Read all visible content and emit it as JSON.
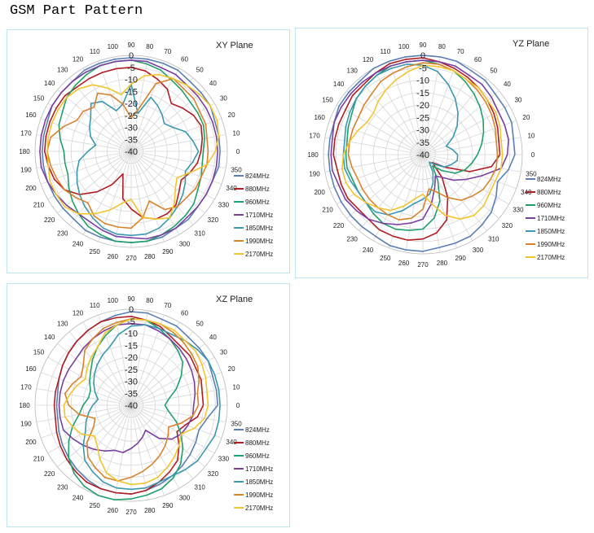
{
  "page": {
    "title": "GSM Part Pattern"
  },
  "colors": {
    "824MHz": "#5a7fb5",
    "880MHz": "#b01e24",
    "960MHz": "#1fa06a",
    "1710MHz": "#7a3fa0",
    "1850MHz": "#3a98b0",
    "1990MHz": "#d9822b",
    "2170MHz": "#f2c42c"
  },
  "chart_data": [
    {
      "type": "polar-line",
      "title": "XY Plane",
      "r_ticks": [
        "0",
        "-5",
        "-10",
        "-15",
        "-20",
        "-25",
        "-30",
        "-35",
        "-40"
      ],
      "r_range": [
        -40,
        0
      ],
      "angle_labels": [
        "0",
        "10",
        "20",
        "30",
        "40",
        "50",
        "60",
        "70",
        "80",
        "90",
        "100",
        "110",
        "120",
        "130",
        "140",
        "150",
        "160",
        "170",
        "180",
        "190",
        "200",
        "210",
        "220",
        "230",
        "240",
        "250",
        "260",
        "270",
        "280",
        "290",
        "300",
        "310",
        "320",
        "330",
        "340",
        "350"
      ],
      "legend": [
        "824MHz",
        "880MHz",
        "960MHz",
        "1710MHz",
        "1850MHz",
        "1990MHz",
        "2170MHz"
      ],
      "series": [
        {
          "name": "824MHz",
          "values": [
            -3,
            -3,
            -3,
            -2,
            -2,
            -2,
            -1,
            -1,
            -1,
            -1,
            -1,
            -1,
            -1,
            -2,
            -2,
            -2,
            -3,
            -3,
            -3,
            -3,
            -3,
            -3,
            -3,
            -3,
            -2,
            -2,
            -2,
            -2,
            -2,
            -2,
            -3,
            -3,
            -4,
            -4,
            -4,
            -3
          ]
        },
        {
          "name": "880MHz",
          "values": [
            -11,
            -10,
            -9,
            -10,
            -12,
            -14,
            -10,
            -8,
            -6,
            -5,
            -5,
            -5,
            -5,
            -5,
            -4,
            -4,
            -4,
            -4,
            -4,
            -5,
            -6,
            -8,
            -12,
            -18,
            -24,
            -30,
            -20,
            -16,
            -12,
            -10,
            -10,
            -11,
            -14,
            -16,
            -14,
            -12
          ]
        },
        {
          "name": "960MHz",
          "values": [
            -10,
            -9,
            -8,
            -8,
            -8,
            -7,
            -6,
            -4,
            -3,
            -2,
            -2,
            -2,
            -3,
            -4,
            -5,
            -7,
            -8,
            -10,
            -12,
            -12,
            -12,
            -10,
            -8,
            -6,
            -4,
            -3,
            -2,
            -2,
            -2,
            -3,
            -4,
            -5,
            -6,
            -8,
            -9,
            -10
          ]
        },
        {
          "name": "1710MHz",
          "values": [
            -4,
            -4,
            -4,
            -4,
            -4,
            -4,
            -3,
            -3,
            -2,
            -2,
            -2,
            -2,
            -2,
            -2,
            -2,
            -2,
            -2,
            -2,
            -2,
            -2,
            -3,
            -4,
            -5,
            -6,
            -6,
            -5,
            -4,
            -4,
            -3,
            -3,
            -3,
            -4,
            -4,
            -4,
            -4,
            -4
          ]
        },
        {
          "name": "1850MHz",
          "values": [
            -12,
            -14,
            -16,
            -20,
            -22,
            -20,
            -18,
            -16,
            -24,
            -12,
            -20,
            -22,
            -16,
            -14,
            -18,
            -20,
            -22,
            -25,
            -22,
            -18,
            -16,
            -14,
            -12,
            -10,
            -8,
            -6,
            -5,
            -5,
            -5,
            -6,
            -8,
            -10,
            -12,
            -14,
            -16,
            -14
          ]
        },
        {
          "name": "1990MHz",
          "values": [
            -8,
            -8,
            -7,
            -7,
            -6,
            -6,
            -5,
            -10,
            -22,
            -26,
            -20,
            -15,
            -12,
            -16,
            -14,
            -14,
            -10,
            -6,
            -5,
            -6,
            -7,
            -8,
            -10,
            -12,
            -9,
            -8,
            -8,
            -8,
            -12,
            -18,
            -12,
            -10,
            -10,
            -9,
            -9,
            -8
          ]
        },
        {
          "name": "2170MHz",
          "values": [
            -5,
            -3,
            -2,
            -2,
            -3,
            -4,
            -5,
            -6,
            -8,
            -12,
            -16,
            -12,
            -8,
            -6,
            -5,
            -5,
            -5,
            -5,
            -5,
            -5,
            -4,
            -4,
            -4,
            -6,
            -10,
            -14,
            -18,
            -20,
            -12,
            -10,
            -8,
            -12,
            -16,
            -18,
            -14,
            -8
          ]
        }
      ]
    },
    {
      "type": "polar-line",
      "title": "YZ Plane",
      "r_ticks": [
        "0",
        "-5",
        "-10",
        "-15",
        "-20",
        "-25",
        "-30",
        "-35",
        "-40"
      ],
      "r_range": [
        -40,
        0
      ],
      "angle_labels": [
        "0",
        "10",
        "20",
        "30",
        "40",
        "50",
        "60",
        "70",
        "80",
        "90",
        "100",
        "110",
        "120",
        "130",
        "140",
        "150",
        "160",
        "170",
        "180",
        "190",
        "200",
        "210",
        "220",
        "230",
        "240",
        "250",
        "260",
        "270",
        "280",
        "290",
        "300",
        "310",
        "320",
        "330",
        "340",
        "350"
      ],
      "legend": [
        "824MHz",
        "880MHz",
        "960MHz",
        "1710MHz",
        "1850MHz",
        "1990MHz",
        "2170MHz"
      ],
      "series": [
        {
          "name": "824MHz",
          "values": [
            -3,
            -3,
            -2,
            -2,
            -2,
            -1,
            -1,
            0,
            0,
            0,
            0,
            0,
            0,
            -1,
            -1,
            -1,
            -2,
            -2,
            -2,
            -2,
            -2,
            -2,
            -2,
            -2,
            -2,
            -1,
            -1,
            -1,
            -2,
            -2,
            -2,
            -3,
            -4,
            -6,
            -8,
            -5
          ]
        },
        {
          "name": "880MHz",
          "values": [
            -9,
            -9,
            -8,
            -7,
            -6,
            -5,
            -4,
            -3,
            -2,
            -1,
            -1,
            -1,
            -2,
            -3,
            -3,
            -4,
            -4,
            -4,
            -4,
            -5,
            -5,
            -5,
            -6,
            -6,
            -5,
            -5,
            -5,
            -6,
            -8,
            -12,
            -20,
            -28,
            -35,
            -30,
            -20,
            -12
          ]
        },
        {
          "name": "960MHz",
          "values": [
            -18,
            -16,
            -14,
            -12,
            -10,
            -8,
            -6,
            -4,
            -3,
            -2,
            -2,
            -2,
            -3,
            -4,
            -5,
            -7,
            -8,
            -9,
            -9,
            -9,
            -10,
            -10,
            -10,
            -9,
            -8,
            -8,
            -9,
            -10,
            -14,
            -20,
            -28,
            -34,
            -30,
            -25,
            -22,
            -20
          ]
        },
        {
          "name": "1710MHz",
          "values": [
            -6,
            -5,
            -5,
            -5,
            -4,
            -3,
            -3,
            -2,
            -2,
            -2,
            -2,
            -2,
            -2,
            -2,
            -2,
            -2,
            -2,
            -3,
            -3,
            -3,
            -4,
            -4,
            -5,
            -6,
            -8,
            -10,
            -12,
            -14,
            -20,
            -26,
            -30,
            -28,
            -24,
            -20,
            -15,
            -8
          ]
        },
        {
          "name": "1850MHz",
          "values": [
            -26,
            -28,
            -30,
            -26,
            -22,
            -18,
            -14,
            -10,
            -6,
            -4,
            -3,
            -3,
            -3,
            -4,
            -5,
            -6,
            -7,
            -8,
            -8,
            -8,
            -9,
            -10,
            -10,
            -10,
            -12,
            -16,
            -20,
            -22,
            -24,
            -28,
            -32,
            -36,
            -34,
            -30,
            -28,
            -26
          ]
        },
        {
          "name": "1990MHz",
          "values": [
            -10,
            -10,
            -9,
            -8,
            -7,
            -6,
            -5,
            -4,
            -3,
            -3,
            -4,
            -5,
            -6,
            -8,
            -9,
            -10,
            -10,
            -10,
            -10,
            -11,
            -12,
            -12,
            -12,
            -12,
            -12,
            -12,
            -14,
            -18,
            -26,
            -24,
            -20,
            -16,
            -14,
            -12,
            -11,
            -10
          ]
        },
        {
          "name": "2170MHz",
          "values": [
            -8,
            -8,
            -7,
            -6,
            -6,
            -5,
            -5,
            -4,
            -4,
            -4,
            -6,
            -8,
            -10,
            -12,
            -14,
            -14,
            -12,
            -10,
            -8,
            -7,
            -7,
            -8,
            -10,
            -12,
            -14,
            -18,
            -22,
            -24,
            -20,
            -14,
            -10,
            -8,
            -8,
            -9,
            -9,
            -8
          ]
        }
      ]
    },
    {
      "type": "polar-line",
      "title": "XZ Plane",
      "r_ticks": [
        "0",
        "-5",
        "-10",
        "-15",
        "-20",
        "-25",
        "-30",
        "-35",
        "-40"
      ],
      "r_range": [
        -40,
        0
      ],
      "angle_labels": [
        "0",
        "10",
        "20",
        "30",
        "40",
        "50",
        "60",
        "70",
        "80",
        "90",
        "100",
        "110",
        "120",
        "130",
        "140",
        "150",
        "160",
        "170",
        "180",
        "190",
        "200",
        "210",
        "220",
        "230",
        "240",
        "250",
        "260",
        "270",
        "280",
        "290",
        "300",
        "310",
        "320",
        "330",
        "340",
        "350"
      ],
      "legend": [
        "824MHz",
        "880MHz",
        "960MHz",
        "1710MHz",
        "1850MHz",
        "1990MHz",
        "2170MHz"
      ],
      "series": [
        {
          "name": "824MHz",
          "values": [
            -4,
            -4,
            -4,
            -3,
            -3,
            -3,
            -2,
            -2,
            -1,
            -1,
            -2,
            -3,
            -4,
            -5,
            -6,
            -7,
            -8,
            -9,
            -9,
            -9,
            -8,
            -7,
            -6,
            -5,
            -4,
            -3,
            -3,
            -3,
            -4,
            -5,
            -6,
            -7,
            -8,
            -9,
            -10,
            -8
          ]
        },
        {
          "name": "880MHz",
          "values": [
            -10,
            -10,
            -9,
            -9,
            -8,
            -8,
            -7,
            -5,
            -4,
            -3,
            -3,
            -3,
            -4,
            -5,
            -6,
            -7,
            -8,
            -8,
            -8,
            -8,
            -7,
            -6,
            -5,
            -4,
            -3,
            -3,
            -3,
            -3,
            -4,
            -6,
            -8,
            -10,
            -14,
            -18,
            -16,
            -12
          ]
        },
        {
          "name": "960MHz",
          "values": [
            -26,
            -24,
            -20,
            -16,
            -12,
            -10,
            -8,
            -6,
            -4,
            -4,
            -6,
            -9,
            -12,
            -15,
            -18,
            -20,
            -22,
            -22,
            -20,
            -18,
            -14,
            -10,
            -6,
            -3,
            -1,
            0,
            0,
            -1,
            -2,
            -3,
            -5,
            -8,
            -12,
            -16,
            -20,
            -24
          ]
        },
        {
          "name": "1710MHz",
          "values": [
            -14,
            -13,
            -12,
            -11,
            -10,
            -9,
            -8,
            -7,
            -6,
            -6,
            -6,
            -7,
            -8,
            -9,
            -10,
            -10,
            -10,
            -10,
            -10,
            -10,
            -10,
            -12,
            -14,
            -16,
            -18,
            -20,
            -20,
            -22,
            -24,
            -26,
            -28,
            -22,
            -18,
            -16,
            -15,
            -14
          ]
        },
        {
          "name": "1850MHz",
          "values": [
            -3,
            -3,
            -3,
            -3,
            -4,
            -5,
            -6,
            -6,
            -6,
            -7,
            -10,
            -14,
            -16,
            -18,
            -20,
            -22,
            -24,
            -26,
            -24,
            -22,
            -20,
            -18,
            -14,
            -10,
            -8,
            -6,
            -5,
            -5,
            -5,
            -6,
            -6,
            -5,
            -4,
            -4,
            -3,
            -3
          ]
        },
        {
          "name": "1990MHz",
          "values": [
            -12,
            -12,
            -10,
            -8,
            -7,
            -6,
            -5,
            -4,
            -4,
            -4,
            -5,
            -6,
            -8,
            -10,
            -14,
            -16,
            -14,
            -12,
            -14,
            -18,
            -24,
            -22,
            -16,
            -12,
            -10,
            -8,
            -8,
            -10,
            -12,
            -14,
            -16,
            -18,
            -20,
            -22,
            -18,
            -14
          ]
        },
        {
          "name": "2170MHz",
          "values": [
            -8,
            -8,
            -7,
            -6,
            -5,
            -5,
            -4,
            -4,
            -4,
            -4,
            -6,
            -8,
            -12,
            -14,
            -16,
            -18,
            -16,
            -14,
            -12,
            -12,
            -14,
            -16,
            -20,
            -18,
            -14,
            -10,
            -8,
            -7,
            -7,
            -8,
            -10,
            -12,
            -14,
            -16,
            -12,
            -9
          ]
        }
      ]
    }
  ]
}
